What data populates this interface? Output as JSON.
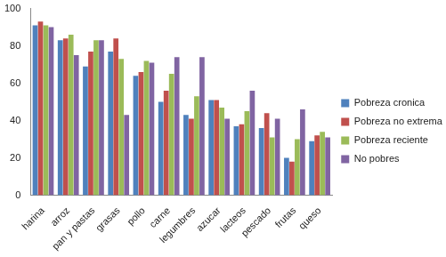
{
  "chart_data": {
    "type": "bar",
    "categories": [
      "harina",
      "arroz",
      "pan y pastas",
      "grasas",
      "pollo",
      "carne",
      "legumbres",
      "azucar",
      "lacteos",
      "pescado",
      "frutas",
      "queso"
    ],
    "series": [
      {
        "name": "Pobreza cronica",
        "color": "#4f81bd",
        "values": [
          91,
          83,
          69,
          77,
          64,
          50,
          43,
          51,
          37,
          36,
          20,
          29
        ]
      },
      {
        "name": "Pobreza no extrema",
        "color": "#c0504d",
        "values": [
          93,
          84,
          77,
          84,
          66,
          56,
          41,
          51,
          38,
          44,
          18,
          32
        ]
      },
      {
        "name": "Pobreza reciente",
        "color": "#9bbb59",
        "values": [
          91,
          86,
          83,
          73,
          72,
          65,
          53,
          47,
          45,
          31,
          30,
          34
        ]
      },
      {
        "name": "No pobres",
        "color": "#8064a2",
        "values": [
          90,
          75,
          83,
          43,
          71,
          74,
          74,
          41,
          56,
          41,
          46,
          31
        ]
      }
    ],
    "ylim": [
      0,
      100
    ],
    "yticks": [
      0,
      20,
      40,
      60,
      80,
      100
    ],
    "grid": false,
    "legend": "right"
  }
}
